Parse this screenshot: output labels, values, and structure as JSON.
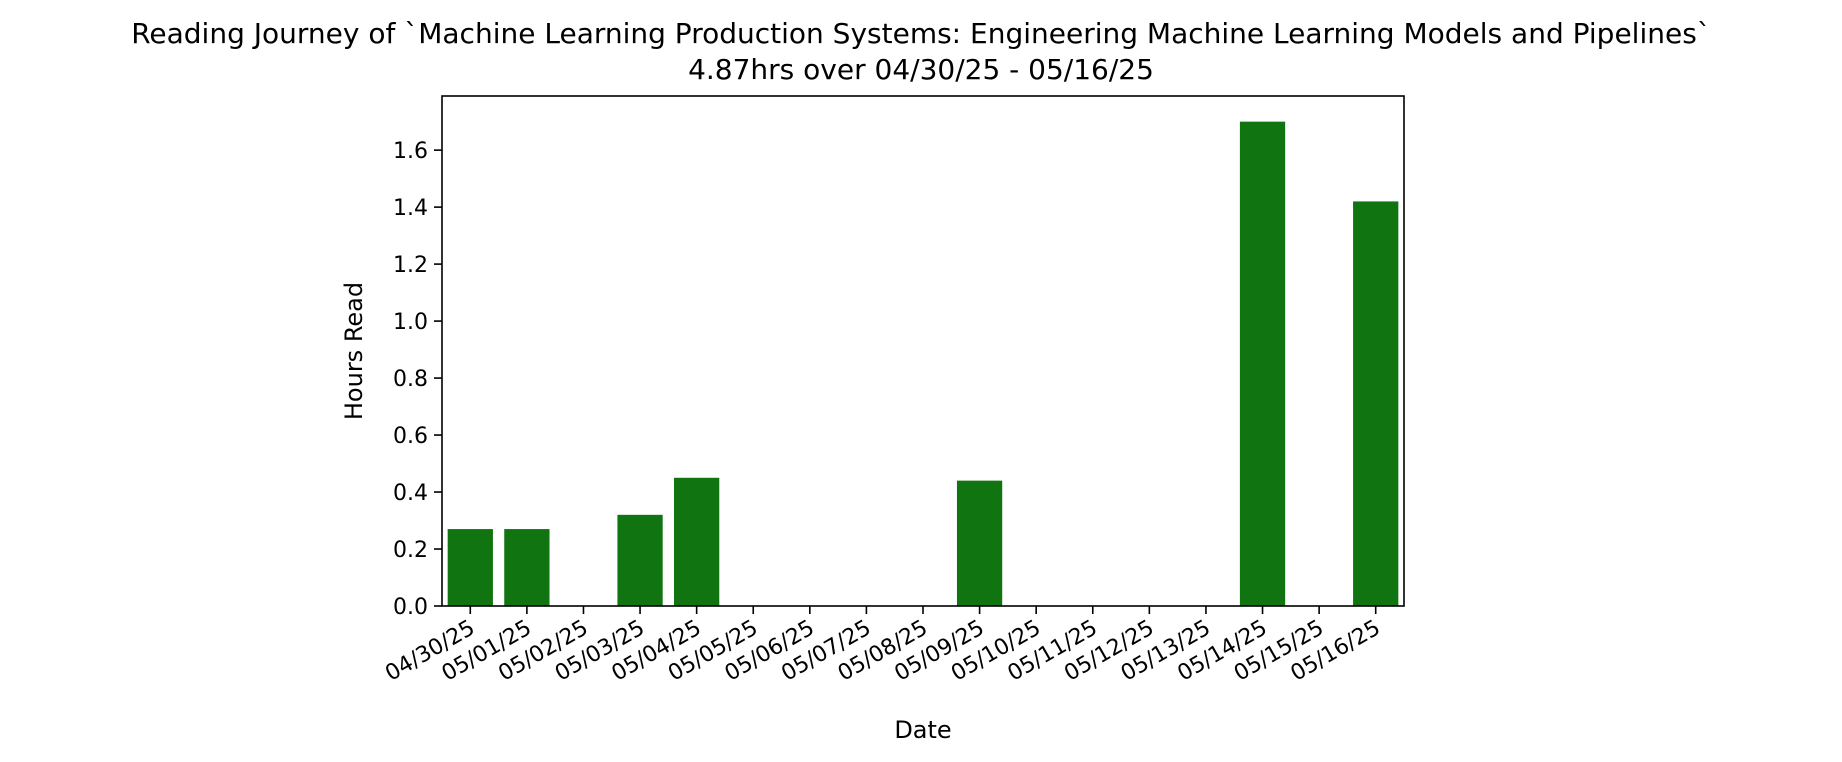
{
  "title": "Reading Journey of `Machine Learning Production Systems: Engineering Machine Learning Models and Pipelines`",
  "subtitle": "4.87hrs over 04/30/25 - 05/16/25",
  "colors": {
    "bar": "#107411",
    "axis": "#000000",
    "background": "#ffffff"
  },
  "chart_data": {
    "type": "bar",
    "title": "Reading Journey of `Machine Learning Production Systems: Engineering Machine Learning Models and Pipelines`",
    "subtitle": "4.87hrs over 04/30/25 - 05/16/25",
    "xlabel": "Date",
    "ylabel": "Hours Read",
    "categories": [
      "04/30/25",
      "05/01/25",
      "05/02/25",
      "05/03/25",
      "05/04/25",
      "05/05/25",
      "05/06/25",
      "05/07/25",
      "05/08/25",
      "05/09/25",
      "05/10/25",
      "05/11/25",
      "05/12/25",
      "05/13/25",
      "05/14/25",
      "05/15/25",
      "05/16/25"
    ],
    "values": [
      0.27,
      0.27,
      0,
      0.32,
      0.45,
      0,
      0,
      0,
      0,
      0.44,
      0,
      0,
      0,
      0,
      1.7,
      0,
      1.42
    ],
    "ylim": [
      0,
      1.79
    ],
    "yticks": [
      0.0,
      0.2,
      0.4,
      0.6,
      0.8,
      1.0,
      1.2,
      1.4,
      1.6
    ],
    "ytick_labels": [
      "0.0",
      "0.2",
      "0.4",
      "0.6",
      "0.8",
      "1.0",
      "1.2",
      "1.4",
      "1.6"
    ],
    "grid": false,
    "legend": "none"
  }
}
